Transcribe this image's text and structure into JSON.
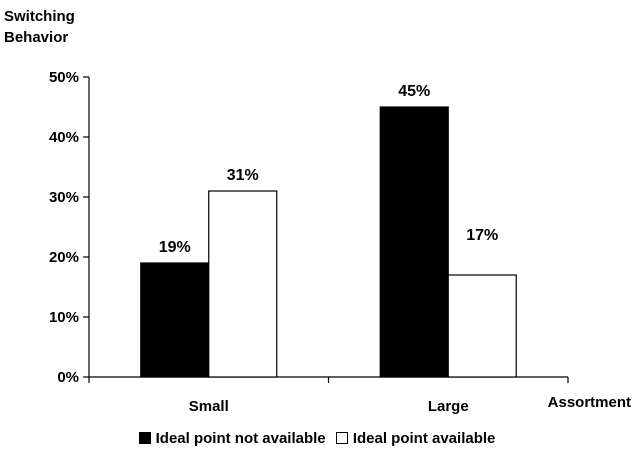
{
  "chart_data": {
    "type": "bar",
    "ylabel_lines": [
      "Switching",
      "Behavior"
    ],
    "xlabel": "Assortment",
    "categories": [
      "Small",
      "Large"
    ],
    "series": [
      {
        "name": "Ideal point not available",
        "values": [
          19,
          45
        ],
        "labels": [
          "19%",
          "45%"
        ],
        "color": "#000000"
      },
      {
        "name": "Ideal point available",
        "values": [
          31,
          17
        ],
        "labels": [
          "31%",
          "17%"
        ],
        "color": "#ffffff"
      }
    ],
    "ylim": [
      0,
      50
    ],
    "yticks": [
      0,
      10,
      20,
      30,
      40,
      50
    ],
    "ytick_labels": [
      "0%",
      "10%",
      "20%",
      "30%",
      "40%",
      "50%"
    ],
    "grid": false,
    "legend_position": "bottom"
  }
}
